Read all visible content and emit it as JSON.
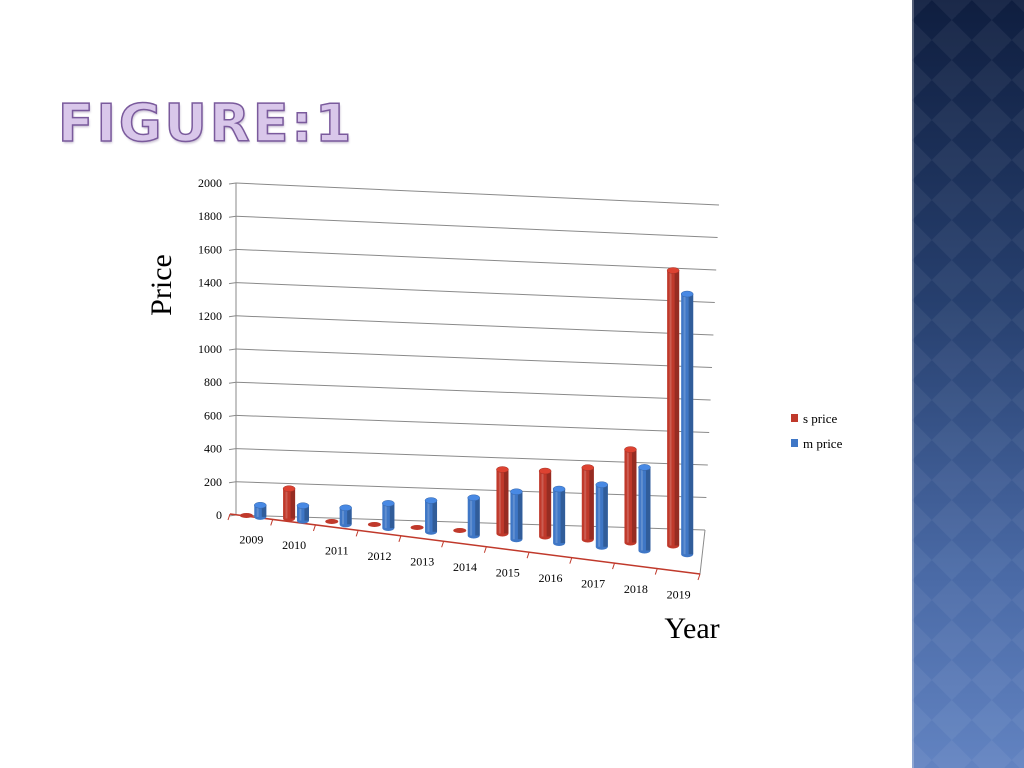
{
  "slide": {
    "title": "FIGURE:1"
  },
  "colors": {
    "s_price": "#c0392b",
    "m_price": "#3f77c6",
    "panel_top": "#0f1e3f",
    "panel_bottom": "#6283c1"
  },
  "chart_data": {
    "type": "bar",
    "style": "3d-cylinder",
    "categories": [
      "2009",
      "2010",
      "2011",
      "2012",
      "2013",
      "2014",
      "2015",
      "2016",
      "2017",
      "2018",
      "2019"
    ],
    "series": [
      {
        "name": "s price",
        "values": [
          0,
          180,
          0,
          0,
          0,
          0,
          390,
          400,
          440,
          570,
          1690
        ]
      },
      {
        "name": "m price",
        "values": [
          70,
          90,
          100,
          150,
          190,
          230,
          290,
          330,
          380,
          510,
          1600
        ]
      }
    ],
    "ylim": [
      0,
      2000
    ],
    "yticks": [
      "0",
      "200",
      "400",
      "600",
      "800",
      "1000",
      "1200",
      "1400",
      "1600",
      "1800",
      "2000"
    ],
    "xlabel": "Year",
    "ylabel": "Price",
    "grid": true,
    "legend": "right"
  }
}
